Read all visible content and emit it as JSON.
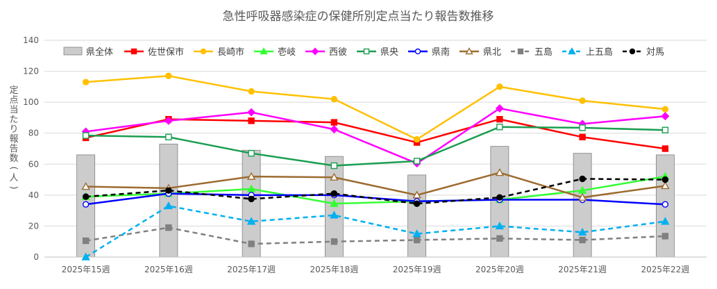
{
  "chart_data": {
    "type": "bar+line",
    "title": "急性呼吸器感染症の保健所別定点当たり報告数推移",
    "ylabel": "定点当たり報告数（人）",
    "xlabel": "",
    "ylim": [
      0,
      140
    ],
    "yticks": [
      0,
      20,
      40,
      60,
      80,
      100,
      120,
      140
    ],
    "grid": true,
    "legend_position": "top",
    "categories": [
      "2025年15週",
      "2025年16週",
      "2025年17週",
      "2025年18週",
      "2025年19週",
      "2025年20週",
      "2025年21週",
      "2025年22週"
    ],
    "bar_series": {
      "name": "県全体",
      "color": "#cccccc",
      "values": [
        66,
        73,
        69,
        65,
        53,
        71.5,
        67,
        66
      ]
    },
    "series": [
      {
        "name": "佐世保市",
        "color": "#ff0000",
        "dash": "solid",
        "marker": "square-filled",
        "values": [
          77,
          89,
          88,
          87,
          74,
          89,
          77.5,
          70
        ]
      },
      {
        "name": "長崎市",
        "color": "#ffc000",
        "dash": "solid",
        "marker": "circle-filled",
        "values": [
          113,
          117,
          107,
          102,
          76,
          110,
          101,
          95.5
        ]
      },
      {
        "name": "壱岐",
        "color": "#33ff33",
        "dash": "solid",
        "marker": "triangle-filled",
        "values": [
          39,
          41,
          44,
          34.5,
          36,
          37,
          43,
          52
        ]
      },
      {
        "name": "西彼",
        "color": "#ff00ff",
        "dash": "solid",
        "marker": "diamond-filled",
        "values": [
          81,
          88,
          93.5,
          82.5,
          60.5,
          96,
          86,
          91
        ]
      },
      {
        "name": "県央",
        "color": "#1a9e50",
        "dash": "solid",
        "marker": "square-open",
        "values": [
          78.5,
          77.5,
          67,
          59,
          62,
          84,
          83.5,
          82
        ]
      },
      {
        "name": "県南",
        "color": "#0000ff",
        "dash": "solid",
        "marker": "circle-open",
        "values": [
          34,
          41,
          40,
          40,
          36,
          37,
          37,
          34
        ]
      },
      {
        "name": "県北",
        "color": "#9c6b30",
        "dash": "solid",
        "marker": "triangle-open",
        "values": [
          45.5,
          44.5,
          52,
          51.5,
          40,
          54.5,
          38.5,
          46
        ]
      },
      {
        "name": "五島",
        "color": "#808080",
        "dash": "dashed",
        "marker": "square-filled",
        "values": [
          10.5,
          19,
          8.5,
          10,
          11,
          12,
          11,
          13.5
        ]
      },
      {
        "name": "上五島",
        "color": "#00b0f0",
        "dash": "dashed",
        "marker": "triangle-filled",
        "values": [
          0,
          33,
          23,
          27,
          15,
          20,
          16,
          23
        ]
      },
      {
        "name": "対馬",
        "color": "#000000",
        "dash": "dashed",
        "marker": "circle-filled",
        "values": [
          39,
          43,
          37.5,
          41,
          34.5,
          38.5,
          50.5,
          50
        ]
      }
    ]
  }
}
